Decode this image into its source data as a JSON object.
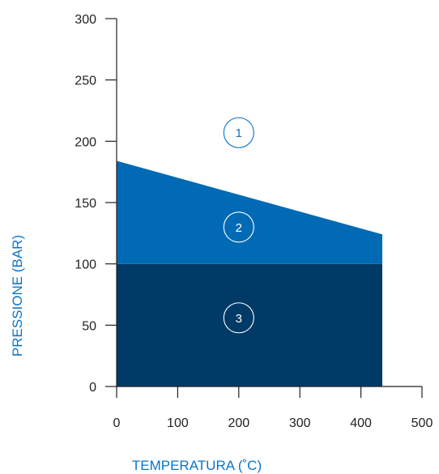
{
  "colors": {
    "region_dark": "#003a66",
    "region_mid": "#006ab5",
    "accent": "#0a74c9",
    "axis": "#222222"
  },
  "chart_data": {
    "type": "area",
    "xlabel": "TEMPERATURA (˚C)",
    "ylabel": "PRESSIONE (BAR)",
    "xlim": [
      0,
      500
    ],
    "ylim": [
      0,
      300
    ],
    "x_ticks": [
      0,
      100,
      200,
      300,
      400,
      500
    ],
    "y_ticks": [
      0,
      50,
      100,
      150,
      200,
      250,
      300
    ],
    "x_tick_labels": [
      "0",
      "100",
      "200",
      "300",
      "400",
      "500"
    ],
    "y_tick_labels": [
      "0",
      "50",
      "100",
      "150",
      "200",
      "250",
      "300"
    ],
    "grid": false,
    "regions": [
      {
        "label": "3",
        "color": "#003a66",
        "polygon": [
          [
            0,
            0
          ],
          [
            435,
            0
          ],
          [
            435,
            100
          ],
          [
            0,
            100
          ]
        ]
      },
      {
        "label": "2",
        "color": "#006ab5",
        "polygon": [
          [
            0,
            100
          ],
          [
            435,
            100
          ],
          [
            435,
            124
          ],
          [
            0,
            184
          ]
        ]
      }
    ],
    "annotations": [
      {
        "text": "1",
        "x": 200,
        "y": 207
      },
      {
        "text": "2",
        "x": 200,
        "y": 130
      },
      {
        "text": "3",
        "x": 200,
        "y": 56
      }
    ]
  }
}
